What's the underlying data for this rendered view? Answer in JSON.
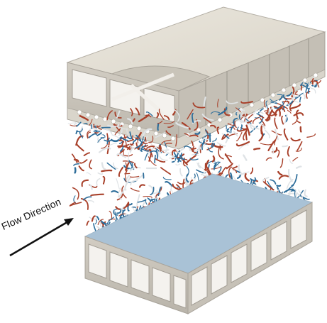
{
  "figure": {
    "flow_label": "Flow Direction",
    "colors": {
      "wall_face": "#cfcac0",
      "wall_top": "#e6e1d6",
      "wall_dark": "#a9a49b",
      "cavity": "#ffffff",
      "vortex_red": "#a8402a",
      "vortex_blue": "#2d6d9a",
      "vortex_white": "#dfe3e6",
      "arrow": "#111111"
    },
    "icons": [
      "top-wall-block",
      "bottom-wall-block",
      "vortex-structures",
      "flow-direction-arrow"
    ]
  }
}
